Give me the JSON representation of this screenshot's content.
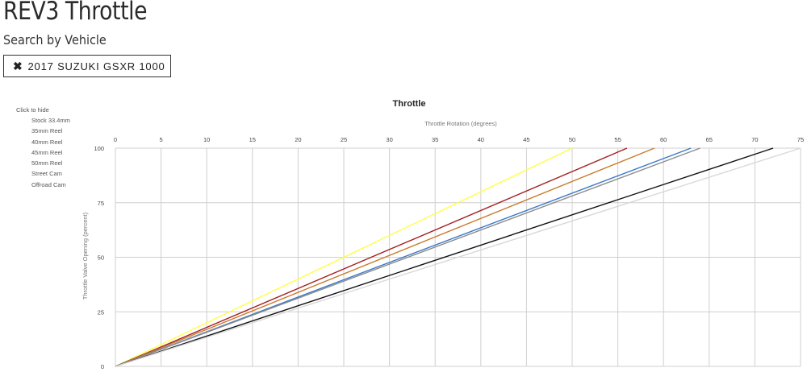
{
  "header": {
    "title": "REV3 Throttle",
    "subtitle": "Search by Vehicle",
    "vehicle_filter": {
      "icon": "close-icon",
      "label": "2017 SUZUKI GSXR 1000"
    }
  },
  "legend": {
    "hint": "Click to hide",
    "items": [
      "Stock 33.4mm",
      "35mm Reel",
      "40mm Reel",
      "45mm Reel",
      "50mm Reel",
      "Street Cam",
      "Offroad Cam"
    ]
  },
  "chart_data": {
    "type": "line",
    "title": "Throttle",
    "xlabel": "Throttle Rotation (degrees)",
    "ylabel": "Throttle Valve Opening (percent)",
    "xlim": [
      0,
      75
    ],
    "ylim": [
      0,
      100
    ],
    "x_ticks": [
      "0",
      "5",
      "10",
      "15",
      "20",
      "25",
      "30",
      "35",
      "40",
      "45",
      "50",
      "55",
      "60",
      "65",
      "70",
      "75"
    ],
    "y_ticks": [
      "0",
      "25",
      "50",
      "75",
      "100"
    ],
    "x_axis_position": "top",
    "grid": true,
    "legend_position": "left",
    "series": [
      {
        "name": "Stock 33.4mm",
        "color": "#ffff44",
        "x": [
          0,
          50
        ],
        "y": [
          0,
          100
        ]
      },
      {
        "name": "35mm Reel",
        "color": "#a51c1c",
        "x": [
          0,
          56
        ],
        "y": [
          0,
          100
        ]
      },
      {
        "name": "40mm Reel",
        "color": "#c97a2c",
        "x": [
          0,
          59
        ],
        "y": [
          0,
          100
        ]
      },
      {
        "name": "45mm Reel",
        "color": "#3a78c8",
        "x": [
          0,
          63
        ],
        "y": [
          0,
          100
        ]
      },
      {
        "name": "50mm Reel",
        "color": "#8c8c8c",
        "x": [
          0,
          64
        ],
        "y": [
          0,
          100
        ]
      },
      {
        "name": "Street Cam",
        "color": "#111111",
        "x": [
          0,
          72
        ],
        "y": [
          0,
          100
        ]
      },
      {
        "name": "Offroad Cam",
        "color": "#d8d8d8",
        "x": [
          0,
          75
        ],
        "y": [
          0,
          100
        ]
      }
    ]
  }
}
